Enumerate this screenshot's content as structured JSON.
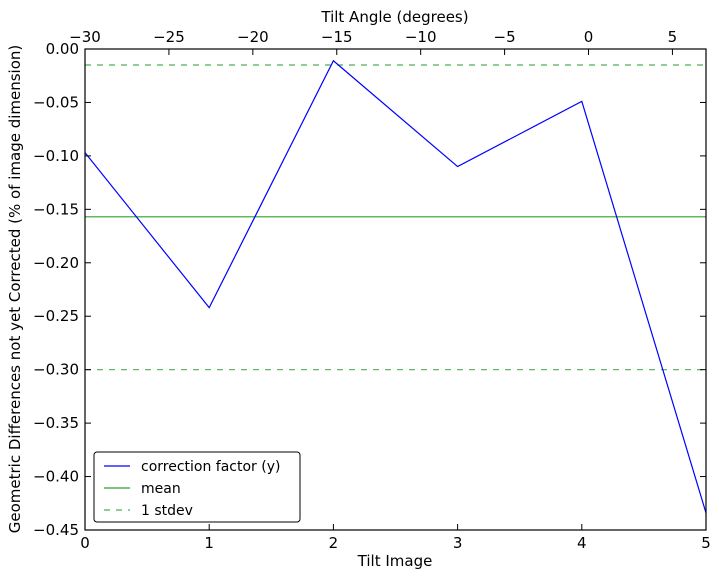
{
  "chart_data": {
    "type": "line",
    "title": "",
    "xlabel": "Tilt Image",
    "ylabel": "Geometric Differences not yet Corrected (% of image dimension)",
    "top_xlabel": "Tilt Angle (degrees)",
    "xlim": [
      0,
      5
    ],
    "ylim": [
      -0.45,
      0.0
    ],
    "top_xlim": [
      -30,
      7
    ],
    "x_ticks": [
      0,
      1,
      2,
      3,
      4,
      5
    ],
    "x_tick_labels": [
      "0",
      "1",
      "2",
      "3",
      "4",
      "5"
    ],
    "y_ticks": [
      0,
      -0.05,
      -0.1,
      -0.15,
      -0.2,
      -0.25,
      -0.3,
      -0.35,
      -0.4,
      -0.45
    ],
    "y_tick_labels": [
      "0.00",
      "−0.05",
      "−0.10",
      "−0.15",
      "−0.20",
      "−0.25",
      "−0.30",
      "−0.35",
      "−0.40",
      "−0.45"
    ],
    "top_ticks": [
      -30,
      -25,
      -20,
      -15,
      -10,
      -5,
      0,
      5
    ],
    "top_tick_labels": [
      "−30",
      "−25",
      "−20",
      "−15",
      "−10",
      "−5",
      "0",
      "5"
    ],
    "grid": false,
    "legend_placement": "lower-left",
    "series": [
      {
        "name": "correction factor (y)",
        "color": "#0000ff",
        "style": "solid",
        "x": [
          0,
          1,
          2,
          3,
          4,
          5
        ],
        "values": [
          -0.097,
          -0.242,
          -0.011,
          -0.11,
          -0.049,
          -0.434
        ]
      },
      {
        "name": "mean",
        "color": "#2ca02c",
        "style": "solid",
        "hline": -0.157
      },
      {
        "name": "1 stdev",
        "color": "#4caf50",
        "style": "dashed",
        "hlines": [
          -0.015,
          -0.3
        ]
      }
    ]
  }
}
